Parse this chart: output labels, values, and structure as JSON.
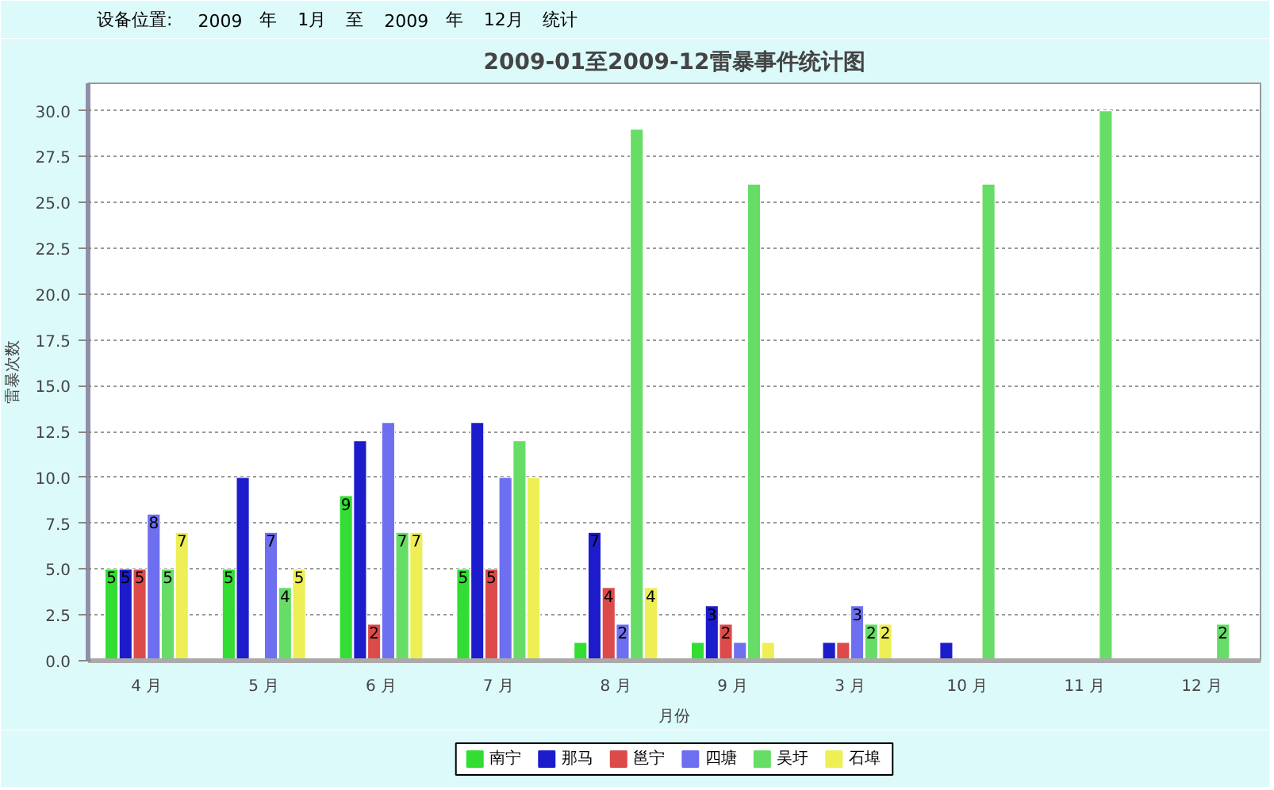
{
  "chart_data": {
    "type": "bar",
    "title": "2009-01至2009-12雷暴事件统计图",
    "xlabel": "月份",
    "ylabel": "雷暴次数",
    "annotations": [
      "设备位置:",
      "2009",
      "年",
      "1月",
      "至",
      "2009",
      "年",
      "12月",
      "统计"
    ],
    "categories": [
      "4 月",
      "5 月",
      "6 月",
      "7 月",
      "8 月",
      "9 月",
      "3 月",
      "10 月",
      "11 月",
      "12 月"
    ],
    "series": [
      {
        "name": "南宁",
        "color": "#33dd33",
        "values": [
          5,
          5,
          9,
          5,
          1,
          1,
          null,
          null,
          null,
          null
        ],
        "value_labels": [
          "5",
          "5",
          "9",
          "5",
          null,
          null,
          null,
          null,
          null,
          null
        ]
      },
      {
        "name": "那马",
        "color": "#1c1ccc",
        "values": [
          5,
          10,
          12,
          13,
          7,
          3,
          1,
          1,
          null,
          null
        ],
        "value_labels": [
          "5",
          null,
          null,
          null,
          "7",
          "3",
          null,
          null,
          null,
          null
        ]
      },
      {
        "name": "邕宁",
        "color": "#dd4a4a",
        "values": [
          5,
          null,
          2,
          5,
          4,
          2,
          1,
          null,
          null,
          null
        ],
        "value_labels": [
          "5",
          null,
          "2",
          "5",
          "4",
          "2",
          null,
          null,
          null,
          null
        ]
      },
      {
        "name": "四塘",
        "color": "#6e6ef0",
        "values": [
          8,
          7,
          13,
          10,
          2,
          1,
          3,
          null,
          null,
          null
        ],
        "value_labels": [
          "8",
          "7",
          null,
          null,
          "2",
          null,
          "3",
          null,
          null,
          null
        ]
      },
      {
        "name": "吴圩",
        "color": "#66dd66",
        "values": [
          5,
          4,
          7,
          12,
          29,
          26,
          2,
          26,
          30,
          2
        ],
        "value_labels": [
          "5",
          "4",
          "7",
          null,
          null,
          null,
          "2",
          null,
          null,
          "2"
        ]
      },
      {
        "name": "石埠",
        "color": "#eeee55",
        "values": [
          7,
          5,
          7,
          10,
          4,
          1,
          2,
          null,
          null,
          null
        ],
        "value_labels": [
          "7",
          "5",
          "7",
          null,
          "4",
          null,
          "2",
          null,
          null,
          null
        ]
      }
    ],
    "ylim": [
      0,
      31.5
    ],
    "yticks": [
      {
        "value": 0,
        "label": "0.0"
      },
      2.5,
      {
        "value": 5,
        "label": "5.0"
      },
      7.5,
      {
        "value": 10,
        "label": "10.0"
      },
      12.5,
      {
        "value": 15,
        "label": "15.0"
      },
      17.5,
      {
        "value": 20,
        "label": "20.0"
      },
      22.5,
      {
        "value": 25,
        "label": "25.0"
      },
      27.5,
      {
        "value": 30,
        "label": "30.0"
      }
    ],
    "grid": "y",
    "legend": "bottom"
  }
}
